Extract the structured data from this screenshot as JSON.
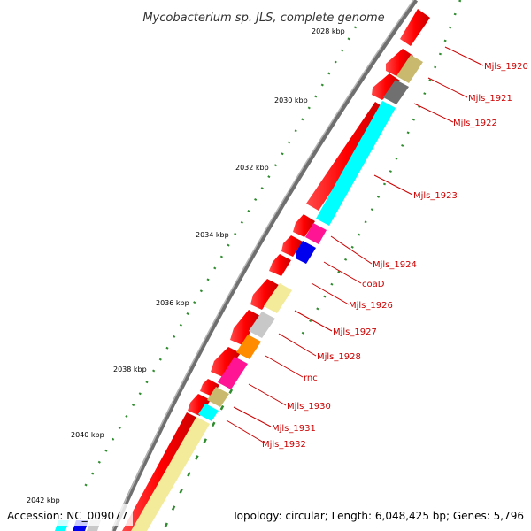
{
  "title": "Mycobacterium sp. JLS, complete genome",
  "footer": {
    "accession": "Accession: NC_009077",
    "summary": "Topology: circular; Length: 6,048,425 bp; Genes: 5,796"
  },
  "ruler_labels": [
    "2028 kbp",
    "2030 kbp",
    "2032 kbp",
    "2034 kbp",
    "2036 kbp",
    "2038 kbp",
    "2040 kbp",
    "2042 kbp"
  ],
  "gene_labels": [
    "Mjls_1920",
    "Mjls_1921",
    "Mjls_1922",
    "Mjls_1923",
    "Mjls_1924",
    "coaD",
    "Mjls_1926",
    "Mjls_1927",
    "Mjls_1928",
    "rnc",
    "Mjls_1930",
    "Mjls_1931",
    "Mjls_1932"
  ],
  "colors": {
    "backbone": "#808080",
    "cds": "#ff0000",
    "label": "#cc0000",
    "ticks": "#2e8b57",
    "cyan": "#00ffff",
    "khaki": "#c8b96e",
    "dark_gray": "#707070",
    "magenta": "#ff1493",
    "blue": "#0000ee",
    "pale_yellow": "#f3ea9a",
    "light_gray": "#c8c8c8",
    "orange": "#ff8c00"
  }
}
